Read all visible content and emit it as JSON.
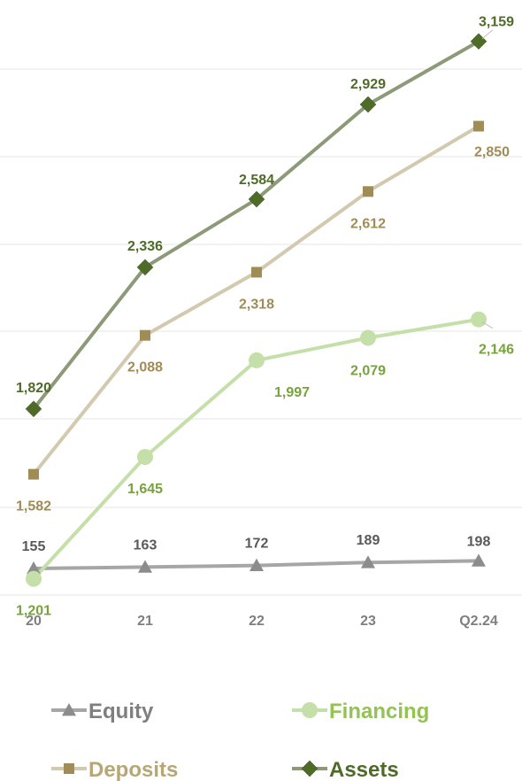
{
  "chart_data": {
    "type": "line",
    "categories": [
      "20",
      "21",
      "22",
      "23",
      "Q2.24"
    ],
    "series": [
      {
        "name": "Equity",
        "values": [
          155,
          163,
          172,
          189,
          198
        ],
        "color": "#a6a6a6",
        "label_color": "#595959",
        "marker": "triangle"
      },
      {
        "name": "Financing",
        "values": [
          1201,
          1645,
          1997,
          2079,
          2146
        ],
        "color": "#c5dfa8",
        "label_color": "#77a33b",
        "marker": "circle"
      },
      {
        "name": "Deposits",
        "values": [
          1582,
          2088,
          2318,
          2612,
          2850
        ],
        "color": "#d2c9ae",
        "label_color": "#a08c55",
        "marker": "square"
      },
      {
        "name": "Assets",
        "values": [
          1820,
          2336,
          2584,
          2929,
          3159
        ],
        "color": "#8c9a78",
        "label_color": "#4e6b28",
        "marker": "diamond"
      }
    ],
    "data_labels": {
      "Equity": [
        "155",
        "163",
        "172",
        "189",
        "198"
      ],
      "Financing": [
        "1,201",
        "1,645",
        "1,997",
        "2,079",
        "2,146"
      ],
      "Deposits": [
        "1,582",
        "2,088",
        "2,318",
        "2,612",
        "2,850"
      ],
      "Assets": [
        "1,820",
        "2,336",
        "2,584",
        "2,929",
        "3,159"
      ]
    },
    "legend": {
      "position": "bottom",
      "items": [
        "Equity",
        "Financing",
        "Deposits",
        "Assets"
      ],
      "text_colors": [
        "#7f7f7f",
        "#92c353",
        "#b6a774",
        "#4e6b28"
      ]
    },
    "grid": true,
    "gridline_color": "#e6e6e6",
    "marker_colors": {
      "Equity": "#8c8c8c",
      "Financing": "#c5dfa8",
      "Deposits": "#a08c55",
      "Assets": "#4e6b28"
    }
  }
}
